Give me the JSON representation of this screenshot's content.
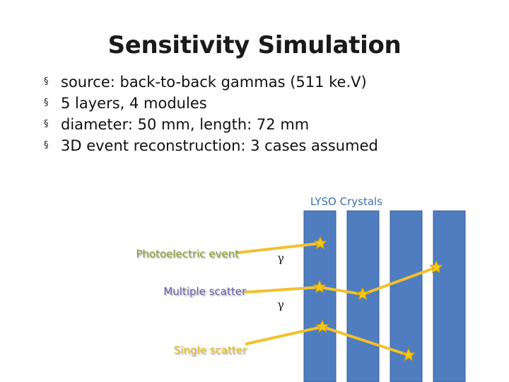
{
  "slide": {
    "title": "Sensitivity Simulation",
    "bullets": [
      "source: back-to-back gammas (511 ke.V)",
      "5 layers, 4 modules",
      "diameter: 50 mm, length: 72 mm",
      "3D event reconstruction:  3 cases assumed"
    ],
    "bullet_symbol": "§"
  },
  "diagram": {
    "crystals_label": "LYSO Crystals",
    "photoelectric_label": "Photoelectric event",
    "multiple_label": "Multiple scatter",
    "single_label": "Single scatter",
    "gamma_symbol": "γ",
    "colors": {
      "crystal": "#4F7DBF",
      "track": "#F2C12E",
      "star": "#F5C816",
      "photo_label": "#8A9A2A",
      "multiple_label": "#6A5FA8",
      "single_label": "#E6B822",
      "crystals_label": "#3A6FA8"
    }
  }
}
